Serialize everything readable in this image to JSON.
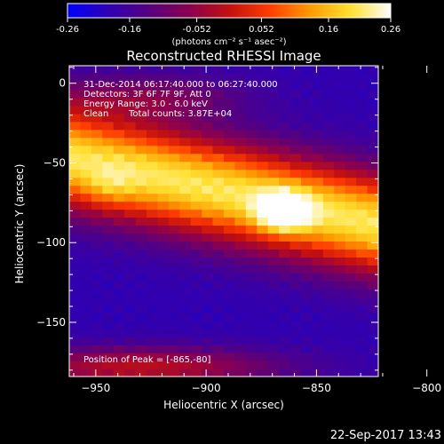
{
  "colors": {
    "background": "#000000",
    "text": "#ffffff",
    "colormap": [
      "#0000ff",
      "#2e00b4",
      "#550080",
      "#8a0050",
      "#c21010",
      "#ff3c00",
      "#ff9a00",
      "#ffe030",
      "#ffffff"
    ]
  },
  "colorbar": {
    "ticks": [
      "-0.26",
      "-0.16",
      "-0.052",
      "0.052",
      "0.16",
      "0.26"
    ],
    "tick_values": [
      -0.26,
      -0.16,
      -0.052,
      0.052,
      0.16,
      0.26
    ],
    "range": [
      -0.26,
      0.26
    ],
    "units": "(photons cm⁻² s⁻¹ asec⁻²)"
  },
  "info": {
    "time": "31-Dec-2014 06:17:40.000 to 06:27:40.000",
    "detectors": "Detectors: 3F 6F 7F 9F, Att 0",
    "energy": "Energy Range: 3.0 - 6.0 keV",
    "clean": "Clean",
    "counts": "Total counts: 3.87E+04",
    "peak": "Position of Peak = [-865,-80]"
  },
  "timestamp": "22-Sep-2017 13:43",
  "chart_data": {
    "type": "heatmap",
    "title": "Reconstructed RHESSI Image",
    "xlabel": "Heliocentric X (arcsec)",
    "ylabel": "Heliocentric Y (arcsec)",
    "xlim": [
      -962,
      -822
    ],
    "ylim": [
      -184,
      11
    ],
    "xticks": [
      -950,
      -900,
      -850,
      -800
    ],
    "xtick_labels": [
      "−950",
      "−900",
      "−850",
      "−800"
    ],
    "yticks": [
      0,
      -50,
      -100,
      -150
    ],
    "ytick_labels": [
      "0",
      "−50",
      "−100",
      "−150"
    ],
    "peak": {
      "x": -865,
      "y": -80
    },
    "value_range": [
      -0.26,
      0.26
    ]
  }
}
